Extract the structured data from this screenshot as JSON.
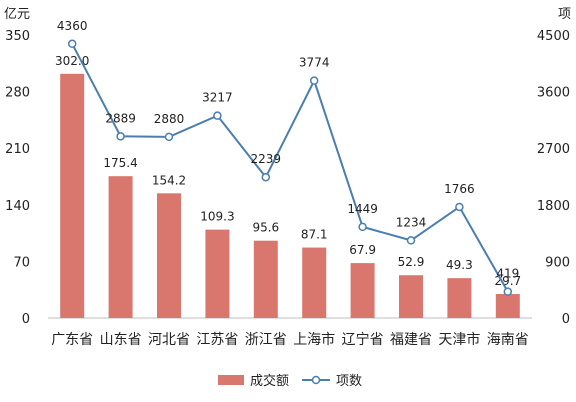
{
  "chart_data": {
    "type": "bar+line",
    "categories": [
      "广东省",
      "山东省",
      "河北省",
      "江苏省",
      "浙江省",
      "上海市",
      "辽宁省",
      "福建省",
      "天津市",
      "海南省"
    ],
    "series": [
      {
        "name": "成交额",
        "type": "bar",
        "axis": "left",
        "values": [
          302.0,
          175.4,
          154.2,
          109.3,
          95.6,
          87.1,
          67.9,
          52.9,
          49.3,
          29.7
        ],
        "labels": [
          "302.0",
          "175.4",
          "154.2",
          "109.3",
          "95.6",
          "87.1",
          "67.9",
          "52.9",
          "49.3",
          "29.7"
        ],
        "color": "#D9776F"
      },
      {
        "name": "项数",
        "type": "line",
        "axis": "right",
        "values": [
          4360,
          2889,
          2880,
          3217,
          2239,
          3774,
          1449,
          1234,
          1766,
          419
        ],
        "labels": [
          "4360",
          "2889",
          "2880",
          "3217",
          "2239",
          "3774",
          "1449",
          "1234",
          "1766",
          "419"
        ],
        "color": "#4A7EB0"
      }
    ],
    "y_left": {
      "label": "亿元",
      "min": 0,
      "max": 350,
      "ticks": [
        0,
        70,
        140,
        210,
        280,
        350
      ]
    },
    "y_right": {
      "label": "项",
      "min": 0,
      "max": 4500,
      "ticks": [
        0,
        900,
        1800,
        2700,
        3600,
        4500
      ]
    },
    "grid": false,
    "legend_position": "bottom"
  }
}
